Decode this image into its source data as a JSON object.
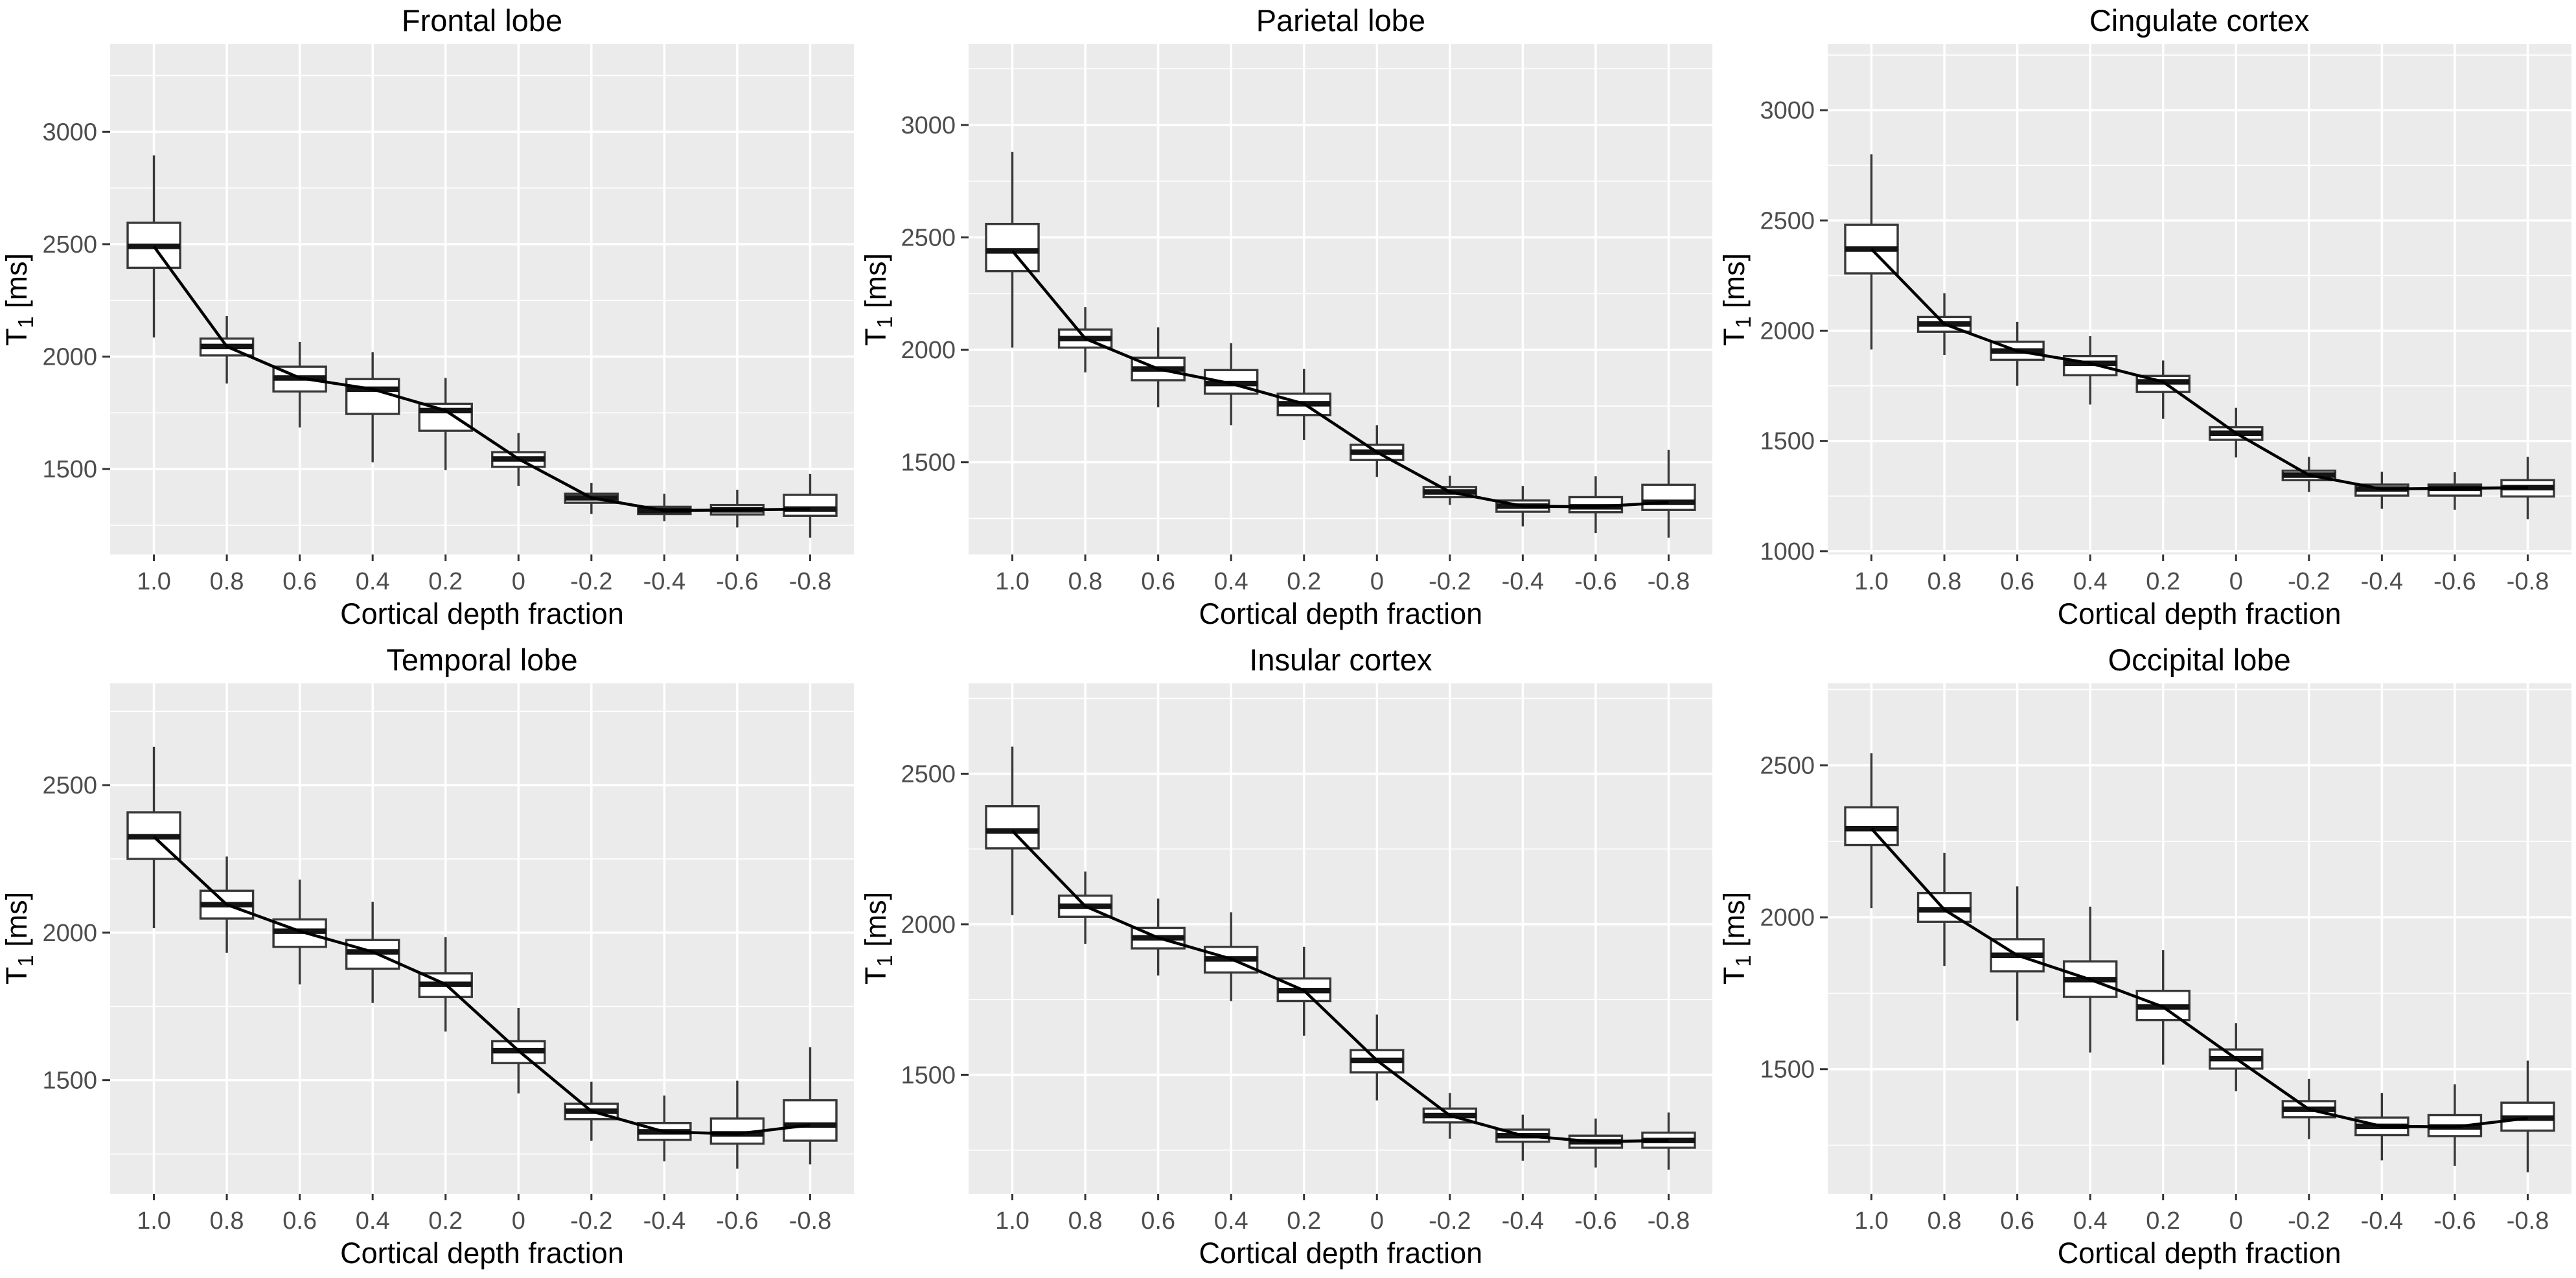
{
  "figure": {
    "background_color": "#ffffff",
    "panel_background_color": "#ebebeb",
    "gridline_color": "#ffffff",
    "box_fill_color": "#ffffff",
    "box_border_color": "#383838",
    "median_color": "#141414",
    "trend_line_color": "#000000",
    "tick_mark_color": "#333333",
    "tick_label_color": "#4d4d4d",
    "title_color": "#000000"
  },
  "axes": {
    "x_label": "Cortical depth fraction",
    "y_label_base": "T",
    "y_label_sub": "1",
    "y_label_units": " [ms]"
  },
  "chart_data": [
    {
      "type": "boxplot",
      "title": "Frontal lobe",
      "xlabel": "Cortical depth fraction",
      "ylabel": "T1 [ms]",
      "categories": [
        "1.0",
        "0.8",
        "0.6",
        "0.4",
        "0.2",
        "0",
        "-0.2",
        "-0.4",
        "-0.6",
        "-0.8"
      ],
      "ylim": [
        1120,
        3390
      ],
      "yticks": [
        1500,
        2000,
        2500,
        3000
      ],
      "grid": "major+minor horizontal, major vertical",
      "legend": "none",
      "trend_line_through": "medians",
      "boxes": [
        {
          "x": "1.0",
          "low": 2085,
          "q1": 2395,
          "median": 2490,
          "q3": 2595,
          "high": 2895
        },
        {
          "x": "0.8",
          "low": 1880,
          "q1": 2005,
          "median": 2045,
          "q3": 2080,
          "high": 2180
        },
        {
          "x": "0.6",
          "low": 1685,
          "q1": 1845,
          "median": 1905,
          "q3": 1955,
          "high": 2065
        },
        {
          "x": "0.4",
          "low": 1530,
          "q1": 1745,
          "median": 1855,
          "q3": 1900,
          "high": 2020
        },
        {
          "x": "0.2",
          "low": 1495,
          "q1": 1670,
          "median": 1760,
          "q3": 1790,
          "high": 1905
        },
        {
          "x": "0",
          "low": 1425,
          "q1": 1510,
          "median": 1545,
          "q3": 1575,
          "high": 1660
        },
        {
          "x": "-0.2",
          "low": 1300,
          "q1": 1350,
          "median": 1372,
          "q3": 1390,
          "high": 1438
        },
        {
          "x": "-0.4",
          "low": 1268,
          "q1": 1300,
          "median": 1315,
          "q3": 1332,
          "high": 1390
        },
        {
          "x": "-0.6",
          "low": 1240,
          "q1": 1298,
          "median": 1318,
          "q3": 1340,
          "high": 1408
        },
        {
          "x": "-0.8",
          "low": 1195,
          "q1": 1292,
          "median": 1322,
          "q3": 1385,
          "high": 1478
        }
      ]
    },
    {
      "type": "boxplot",
      "title": "Parietal lobe",
      "xlabel": "Cortical depth fraction",
      "ylabel": "T1 [ms]",
      "categories": [
        "1.0",
        "0.8",
        "0.6",
        "0.4",
        "0.2",
        "0",
        "-0.2",
        "-0.4",
        "-0.6",
        "-0.8"
      ],
      "ylim": [
        1090,
        3360
      ],
      "yticks": [
        1500,
        2000,
        2500,
        3000
      ],
      "grid": "major+minor horizontal, major vertical",
      "legend": "none",
      "trend_line_through": "medians",
      "boxes": [
        {
          "x": "1.0",
          "low": 2010,
          "q1": 2350,
          "median": 2440,
          "q3": 2560,
          "high": 2880
        },
        {
          "x": "0.8",
          "low": 1900,
          "q1": 2010,
          "median": 2050,
          "q3": 2090,
          "high": 2190
        },
        {
          "x": "0.6",
          "low": 1745,
          "q1": 1865,
          "median": 1915,
          "q3": 1965,
          "high": 2100
        },
        {
          "x": "0.4",
          "low": 1665,
          "q1": 1805,
          "median": 1850,
          "q3": 1910,
          "high": 2030
        },
        {
          "x": "0.2",
          "low": 1600,
          "q1": 1710,
          "median": 1760,
          "q3": 1805,
          "high": 1915
        },
        {
          "x": "0",
          "low": 1435,
          "q1": 1510,
          "median": 1545,
          "q3": 1578,
          "high": 1665
        },
        {
          "x": "-0.2",
          "low": 1310,
          "q1": 1345,
          "median": 1368,
          "q3": 1390,
          "high": 1440
        },
        {
          "x": "-0.4",
          "low": 1215,
          "q1": 1280,
          "median": 1305,
          "q3": 1330,
          "high": 1395
        },
        {
          "x": "-0.6",
          "low": 1185,
          "q1": 1278,
          "median": 1302,
          "q3": 1345,
          "high": 1438
        },
        {
          "x": "-0.8",
          "low": 1165,
          "q1": 1288,
          "median": 1322,
          "q3": 1400,
          "high": 1555
        }
      ]
    },
    {
      "type": "boxplot",
      "title": "Cingulate cortex",
      "xlabel": "Cortical depth fraction",
      "ylabel": "T1 [ms]",
      "categories": [
        "1.0",
        "0.8",
        "0.6",
        "0.4",
        "0.2",
        "0",
        "-0.2",
        "-0.4",
        "-0.6",
        "-0.8"
      ],
      "ylim": [
        985,
        3300
      ],
      "yticks": [
        1000,
        1500,
        2000,
        2500,
        3000
      ],
      "grid": "major+minor horizontal, major vertical",
      "legend": "none",
      "trend_line_through": "medians",
      "boxes": [
        {
          "x": "1.0",
          "low": 1915,
          "q1": 2260,
          "median": 2370,
          "q3": 2480,
          "high": 2800
        },
        {
          "x": "0.8",
          "low": 1890,
          "q1": 1995,
          "median": 2030,
          "q3": 2062,
          "high": 2170
        },
        {
          "x": "0.6",
          "low": 1750,
          "q1": 1868,
          "median": 1908,
          "q3": 1950,
          "high": 2040
        },
        {
          "x": "0.4",
          "low": 1665,
          "q1": 1798,
          "median": 1852,
          "q3": 1885,
          "high": 1975
        },
        {
          "x": "0.2",
          "low": 1600,
          "q1": 1722,
          "median": 1768,
          "q3": 1795,
          "high": 1865
        },
        {
          "x": "0",
          "low": 1425,
          "q1": 1505,
          "median": 1535,
          "q3": 1562,
          "high": 1650
        },
        {
          "x": "-0.2",
          "low": 1268,
          "q1": 1322,
          "median": 1345,
          "q3": 1365,
          "high": 1428
        },
        {
          "x": "-0.4",
          "low": 1192,
          "q1": 1252,
          "median": 1282,
          "q3": 1302,
          "high": 1360
        },
        {
          "x": "-0.6",
          "low": 1188,
          "q1": 1252,
          "median": 1285,
          "q3": 1302,
          "high": 1358
        },
        {
          "x": "-0.8",
          "low": 1145,
          "q1": 1248,
          "median": 1288,
          "q3": 1322,
          "high": 1428
        }
      ]
    },
    {
      "type": "boxplot",
      "title": "Temporal lobe",
      "xlabel": "Cortical depth fraction",
      "ylabel": "T1 [ms]",
      "categories": [
        "1.0",
        "0.8",
        "0.6",
        "0.4",
        "0.2",
        "0",
        "-0.2",
        "-0.4",
        "-0.6",
        "-0.8"
      ],
      "ylim": [
        1115,
        2845
      ],
      "yticks": [
        1500,
        2000,
        2500
      ],
      "grid": "major+minor horizontal, major vertical",
      "legend": "none",
      "trend_line_through": "medians",
      "boxes": [
        {
          "x": "1.0",
          "low": 2015,
          "q1": 2250,
          "median": 2325,
          "q3": 2408,
          "high": 2630
        },
        {
          "x": "0.8",
          "low": 1932,
          "q1": 2048,
          "median": 2095,
          "q3": 2142,
          "high": 2258
        },
        {
          "x": "0.6",
          "low": 1825,
          "q1": 1952,
          "median": 2005,
          "q3": 2045,
          "high": 2180
        },
        {
          "x": "0.4",
          "low": 1762,
          "q1": 1878,
          "median": 1935,
          "q3": 1975,
          "high": 2105
        },
        {
          "x": "0.2",
          "low": 1665,
          "q1": 1782,
          "median": 1825,
          "q3": 1862,
          "high": 1985
        },
        {
          "x": "0",
          "low": 1455,
          "q1": 1558,
          "median": 1600,
          "q3": 1632,
          "high": 1745
        },
        {
          "x": "-0.2",
          "low": 1295,
          "q1": 1368,
          "median": 1395,
          "q3": 1420,
          "high": 1495
        },
        {
          "x": "-0.4",
          "low": 1225,
          "q1": 1298,
          "median": 1325,
          "q3": 1355,
          "high": 1448
        },
        {
          "x": "-0.6",
          "low": 1200,
          "q1": 1285,
          "median": 1318,
          "q3": 1370,
          "high": 1498
        },
        {
          "x": "-0.8",
          "low": 1215,
          "q1": 1295,
          "median": 1348,
          "q3": 1432,
          "high": 1612
        }
      ]
    },
    {
      "type": "boxplot",
      "title": "Insular cortex",
      "xlabel": "Cortical depth fraction",
      "ylabel": "T1 [ms]",
      "categories": [
        "1.0",
        "0.8",
        "0.6",
        "0.4",
        "0.2",
        "0",
        "-0.2",
        "-0.4",
        "-0.6",
        "-0.8"
      ],
      "ylim": [
        1105,
        2800
      ],
      "yticks": [
        1500,
        2000,
        2500
      ],
      "grid": "major+minor horizontal, major vertical",
      "legend": "none",
      "trend_line_through": "medians",
      "boxes": [
        {
          "x": "1.0",
          "low": 2030,
          "q1": 2252,
          "median": 2310,
          "q3": 2392,
          "high": 2590
        },
        {
          "x": "0.8",
          "low": 1935,
          "q1": 2025,
          "median": 2060,
          "q3": 2095,
          "high": 2175
        },
        {
          "x": "0.6",
          "low": 1830,
          "q1": 1920,
          "median": 1955,
          "q3": 1988,
          "high": 2085
        },
        {
          "x": "0.4",
          "low": 1745,
          "q1": 1840,
          "median": 1885,
          "q3": 1925,
          "high": 2040
        },
        {
          "x": "0.2",
          "low": 1630,
          "q1": 1745,
          "median": 1780,
          "q3": 1820,
          "high": 1925
        },
        {
          "x": "0",
          "low": 1415,
          "q1": 1508,
          "median": 1548,
          "q3": 1582,
          "high": 1700
        },
        {
          "x": "-0.2",
          "low": 1288,
          "q1": 1342,
          "median": 1365,
          "q3": 1388,
          "high": 1440
        },
        {
          "x": "-0.4",
          "low": 1215,
          "q1": 1278,
          "median": 1298,
          "q3": 1318,
          "high": 1368
        },
        {
          "x": "-0.6",
          "low": 1192,
          "q1": 1258,
          "median": 1278,
          "q3": 1298,
          "high": 1355
        },
        {
          "x": "-0.8",
          "low": 1185,
          "q1": 1258,
          "median": 1282,
          "q3": 1308,
          "high": 1375
        }
      ]
    },
    {
      "type": "boxplot",
      "title": "Occipital lobe",
      "xlabel": "Cortical depth fraction",
      "ylabel": "T1 [ms]",
      "categories": [
        "1.0",
        "0.8",
        "0.6",
        "0.4",
        "0.2",
        "0",
        "-0.2",
        "-0.4",
        "-0.6",
        "-0.8"
      ],
      "ylim": [
        1090,
        2770
      ],
      "yticks": [
        1500,
        2000,
        2500
      ],
      "grid": "major+minor horizontal, major vertical",
      "legend": "none",
      "trend_line_through": "medians",
      "boxes": [
        {
          "x": "1.0",
          "low": 2030,
          "q1": 2238,
          "median": 2292,
          "q3": 2362,
          "high": 2540
        },
        {
          "x": "0.8",
          "low": 1840,
          "q1": 1985,
          "median": 2025,
          "q3": 2080,
          "high": 2212
        },
        {
          "x": "0.6",
          "low": 1660,
          "q1": 1822,
          "median": 1875,
          "q3": 1928,
          "high": 2102
        },
        {
          "x": "0.4",
          "low": 1555,
          "q1": 1738,
          "median": 1795,
          "q3": 1855,
          "high": 2035
        },
        {
          "x": "0.2",
          "low": 1515,
          "q1": 1662,
          "median": 1705,
          "q3": 1758,
          "high": 1892
        },
        {
          "x": "0",
          "low": 1428,
          "q1": 1502,
          "median": 1535,
          "q3": 1565,
          "high": 1652
        },
        {
          "x": "-0.2",
          "low": 1270,
          "q1": 1342,
          "median": 1368,
          "q3": 1395,
          "high": 1468
        },
        {
          "x": "-0.4",
          "low": 1200,
          "q1": 1283,
          "median": 1312,
          "q3": 1341,
          "high": 1422
        },
        {
          "x": "-0.6",
          "low": 1182,
          "q1": 1280,
          "median": 1310,
          "q3": 1349,
          "high": 1450
        },
        {
          "x": "-0.8",
          "low": 1161,
          "q1": 1298,
          "median": 1339,
          "q3": 1390,
          "high": 1528
        }
      ]
    }
  ]
}
